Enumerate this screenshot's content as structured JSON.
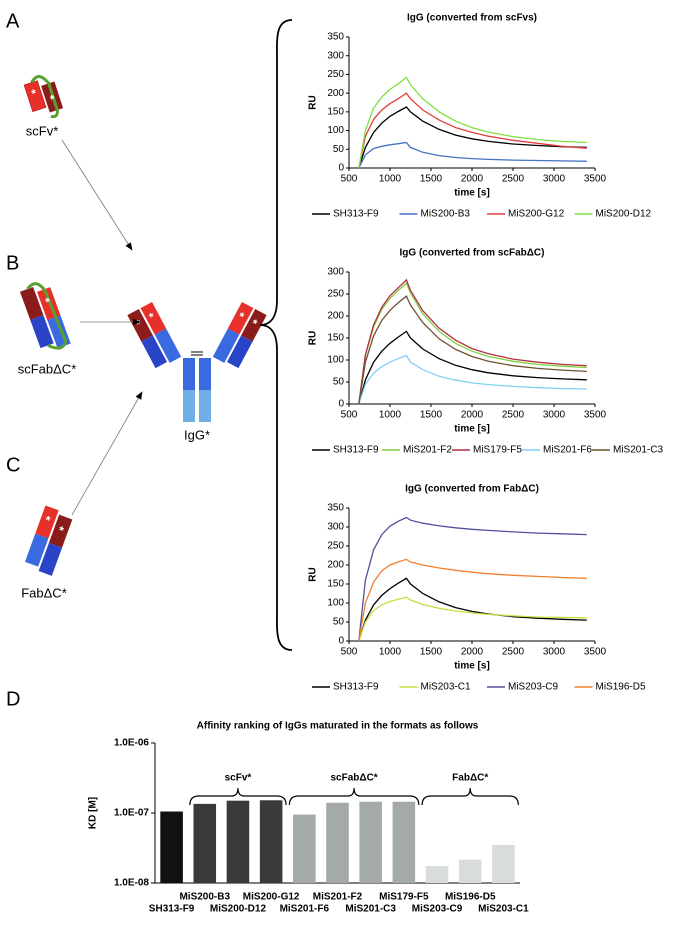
{
  "labels": {
    "panel_a": "A",
    "panel_b": "B",
    "panel_c": "C",
    "panel_d": "D",
    "scfv": "scFv*",
    "scfab": "scFabΔC*",
    "fab": "FabΔC*",
    "igg": "IgG*",
    "star": "*"
  },
  "chart_data": [
    {
      "type": "line",
      "title": "IgG (converted from scFvs)",
      "xlabel": "time [s]",
      "ylabel": "RU",
      "xlim": [
        500,
        3500
      ],
      "xticks": [
        500,
        1000,
        1500,
        2000,
        2500,
        3000,
        3500
      ],
      "ylim": [
        0,
        350
      ],
      "yticks": [
        0,
        50,
        100,
        150,
        200,
        250,
        300,
        350
      ],
      "x": [
        620,
        700,
        800,
        900,
        1000,
        1100,
        1200,
        1250,
        1400,
        1600,
        1800,
        2000,
        2200,
        2500,
        2800,
        3100,
        3400
      ],
      "series": [
        {
          "name": "SH313-F9",
          "color": "#000000",
          "values": [
            0,
            55,
            95,
            120,
            138,
            151,
            163,
            150,
            125,
            103,
            88,
            78,
            71,
            64,
            60,
            57,
            55
          ]
        },
        {
          "name": "MiS200-B3",
          "color": "#4472c4",
          "values": [
            0,
            35,
            52,
            58,
            62,
            65,
            68,
            55,
            42,
            33,
            28,
            25,
            23,
            21,
            20,
            19,
            18
          ]
        },
        {
          "name": "MiS200-G12",
          "color": "#e04040",
          "values": [
            0,
            85,
            130,
            155,
            172,
            185,
            200,
            185,
            155,
            128,
            108,
            95,
            85,
            74,
            66,
            58,
            53
          ]
        },
        {
          "name": "MiS200-D12",
          "color": "#80e040",
          "values": [
            0,
            100,
            160,
            190,
            210,
            225,
            242,
            222,
            185,
            150,
            125,
            108,
            96,
            84,
            76,
            71,
            68
          ]
        }
      ]
    },
    {
      "type": "line",
      "title": "IgG (converted from scFabΔC)",
      "xlabel": "time [s]",
      "ylabel": "RU",
      "xlim": [
        500,
        3500
      ],
      "xticks": [
        500,
        1000,
        1500,
        2000,
        2500,
        3000,
        3500
      ],
      "ylim": [
        0,
        300
      ],
      "yticks": [
        0,
        50,
        100,
        150,
        200,
        250,
        300
      ],
      "x": [
        620,
        700,
        800,
        900,
        1000,
        1100,
        1200,
        1250,
        1400,
        1600,
        1800,
        2000,
        2200,
        2500,
        2800,
        3100,
        3400
      ],
      "series": [
        {
          "name": "SH313-F9",
          "color": "#000000",
          "values": [
            0,
            55,
            95,
            120,
            138,
            152,
            165,
            150,
            125,
            103,
            88,
            78,
            71,
            64,
            60,
            57,
            55
          ]
        },
        {
          "name": "MiS201-F2",
          "color": "#80d040",
          "values": [
            0,
            110,
            175,
            215,
            240,
            258,
            275,
            252,
            205,
            165,
            138,
            120,
            108,
            97,
            90,
            86,
            83
          ]
        },
        {
          "name": "MiS179-F5",
          "color": "#b03040",
          "values": [
            0,
            112,
            180,
            220,
            246,
            264,
            282,
            258,
            212,
            172,
            145,
            126,
            114,
            102,
            95,
            90,
            87
          ]
        },
        {
          "name": "MiS201-F6",
          "color": "#80d0f0",
          "values": [
            0,
            45,
            70,
            85,
            95,
            103,
            110,
            95,
            78,
            63,
            54,
            48,
            44,
            40,
            37,
            35,
            34
          ]
        },
        {
          "name": "MiS201-C3",
          "color": "#705030",
          "values": [
            0,
            95,
            155,
            190,
            213,
            230,
            245,
            225,
            185,
            148,
            124,
            108,
            97,
            87,
            81,
            77,
            74
          ]
        }
      ]
    },
    {
      "type": "line",
      "title": "IgG (converted from FabΔC)",
      "xlabel": "time [s]",
      "ylabel": "RU",
      "xlim": [
        500,
        3500
      ],
      "xticks": [
        500,
        1000,
        1500,
        2000,
        2500,
        3000,
        3500
      ],
      "ylim": [
        0,
        350
      ],
      "yticks": [
        0,
        50,
        100,
        150,
        200,
        250,
        300,
        350
      ],
      "x": [
        620,
        700,
        800,
        900,
        1000,
        1100,
        1200,
        1250,
        1400,
        1600,
        1800,
        2000,
        2200,
        2500,
        2800,
        3100,
        3400
      ],
      "series": [
        {
          "name": "SH313-F9",
          "color": "#000000",
          "values": [
            0,
            55,
            95,
            120,
            138,
            152,
            165,
            150,
            125,
            103,
            88,
            78,
            71,
            64,
            60,
            57,
            55
          ]
        },
        {
          "name": "MiS203-C1",
          "color": "#c0e040",
          "values": [
            0,
            50,
            80,
            95,
            104,
            110,
            115,
            108,
            96,
            86,
            79,
            74,
            70,
            66,
            63,
            62,
            61
          ]
        },
        {
          "name": "MiS203-C9",
          "color": "#5050a0",
          "values": [
            0,
            160,
            240,
            280,
            302,
            315,
            325,
            318,
            310,
            303,
            298,
            294,
            291,
            287,
            284,
            282,
            280
          ]
        },
        {
          "name": "MiS196-D5",
          "color": "#f08030",
          "values": [
            0,
            100,
            155,
            185,
            200,
            208,
            215,
            208,
            200,
            192,
            186,
            181,
            177,
            173,
            170,
            167,
            165
          ]
        }
      ]
    },
    {
      "type": "bar",
      "title": "Affinity ranking of IgGs maturated in the formats as follows",
      "ylabel": "KD [M]",
      "log_scale": true,
      "ylim": [
        1e-08,
        1e-06
      ],
      "yticks": [
        {
          "value": 1e-08,
          "label": "1.0E-08"
        },
        {
          "value": 1e-07,
          "label": "1.0E-07"
        },
        {
          "value": 1e-06,
          "label": "1.0E-06"
        }
      ],
      "categories": [
        "SH313-F9",
        "MiS200-B3",
        "MiS200-D12",
        "MiS200-G12",
        "MiS201-F6",
        "MiS201-F2",
        "MiS201-C3",
        "MiS179-F5",
        "MiS203-C9",
        "MiS196-D5",
        "MiS203-C1"
      ],
      "values": [
        1.05e-07,
        1.35e-07,
        1.5e-07,
        1.52e-07,
        9.5e-08,
        1.4e-07,
        1.45e-07,
        1.45e-07,
        1.75e-08,
        2.15e-08,
        3.5e-08
      ],
      "colors": [
        "#111111",
        "#3a3a3a",
        "#3a3a3a",
        "#3a3a3a",
        "#a3aaa8",
        "#a3aaa8",
        "#a3aaa8",
        "#a3aaa8",
        "#d8dcdb",
        "#d8dcdb",
        "#d8dcdb"
      ],
      "groups": [
        {
          "label": "scFv*",
          "members": [
            "MiS200-B3",
            "MiS200-D12",
            "MiS200-G12"
          ]
        },
        {
          "label": "scFabΔC*",
          "members": [
            "MiS201-F6",
            "MiS201-F2",
            "MiS201-C3",
            "MiS179-F5"
          ]
        },
        {
          "label": "FabΔC*",
          "members": [
            "MiS203-C9",
            "MiS196-D5",
            "MiS203-C1"
          ]
        }
      ]
    }
  ]
}
